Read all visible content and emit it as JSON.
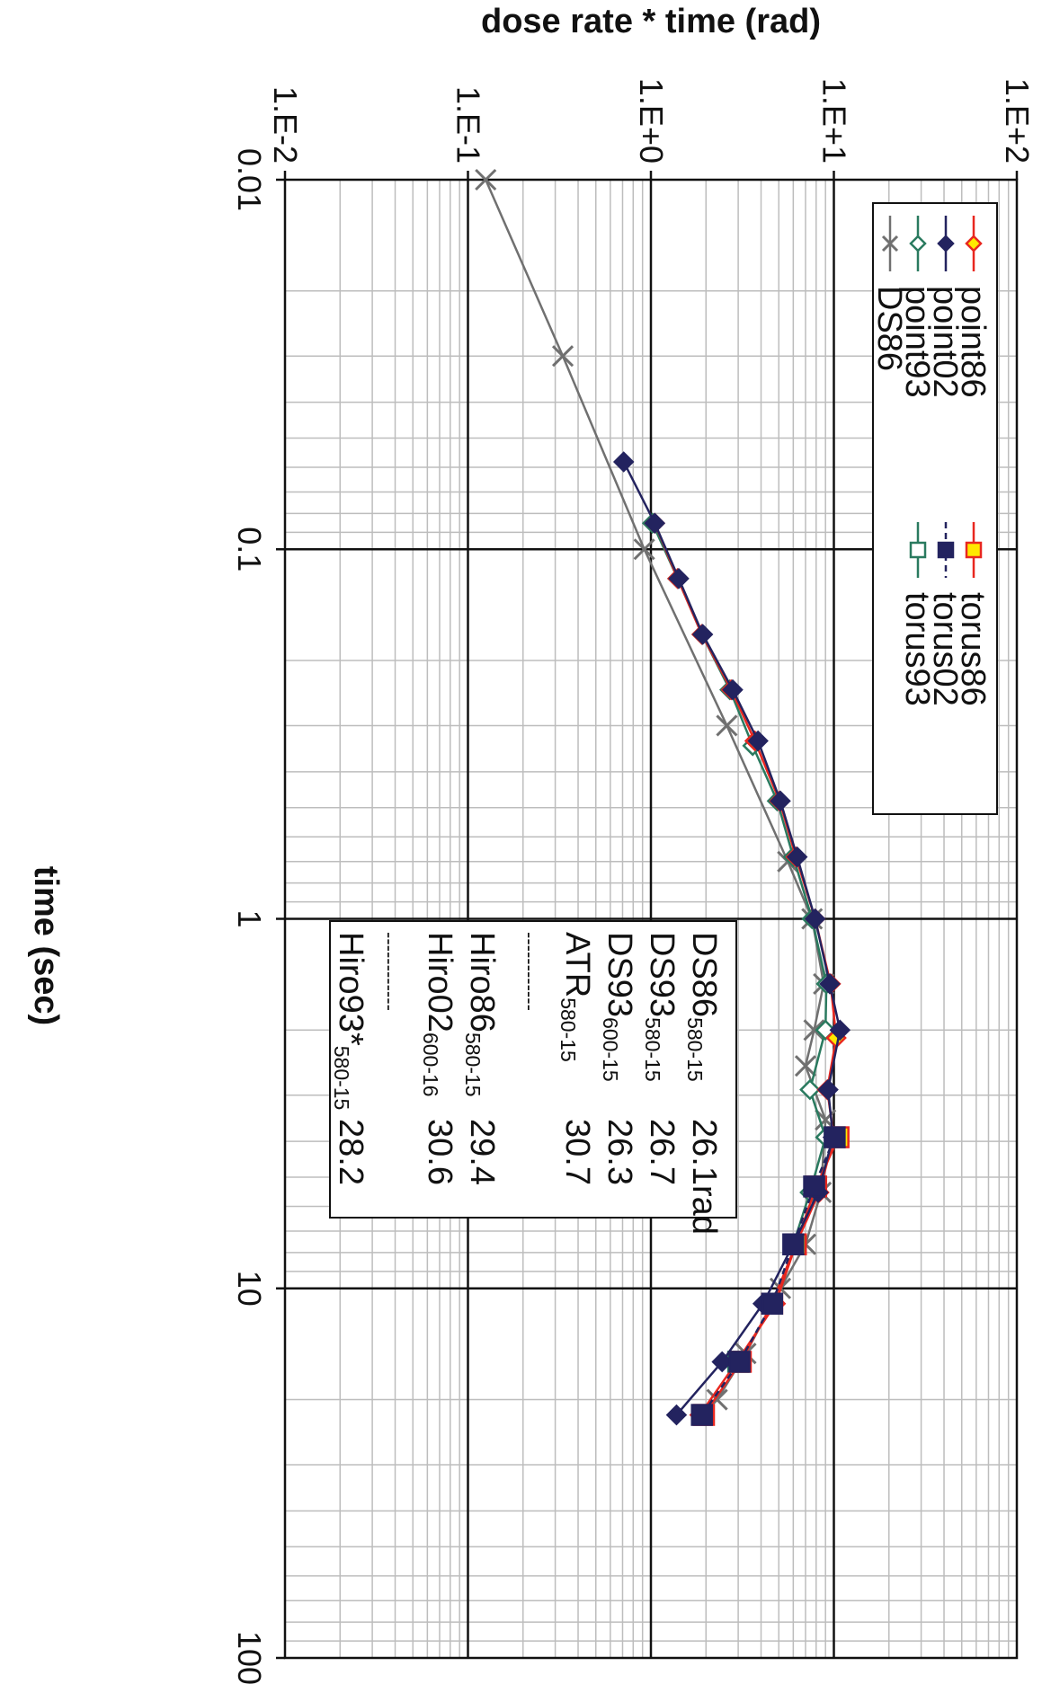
{
  "chart_data": {
    "type": "line",
    "x_scale": "log",
    "y_scale": "log",
    "xlabel": "time (sec)",
    "ylabel": "dose rate * time (rad)",
    "xlim": [
      0.01,
      100
    ],
    "ylim": [
      0.01,
      100
    ],
    "x_ticks": [
      "0.01",
      "0.1",
      "1",
      "10",
      "100"
    ],
    "y_ticks": [
      "1.E-2",
      "1.E-1",
      "1.E+0",
      "1.E+1",
      "1.E+2"
    ],
    "grid": true,
    "rotation": "rotated 90 degrees clockwise on page",
    "legend_placement": "top-left",
    "series": [
      {
        "name": "point86",
        "color": "#e8271f",
        "marker": "diamond-open",
        "marker_fill": "#ffe800",
        "line": "solid",
        "x": [
          0.085,
          0.12,
          0.17,
          0.24,
          0.33,
          0.48,
          0.68,
          1.0,
          1.5,
          2.1,
          2.9,
          3.9,
          5.5,
          7.6,
          11.0,
          15.8,
          22.0
        ],
        "y": [
          1.05,
          1.4,
          1.9,
          2.75,
          3.7,
          5.05,
          6.2,
          7.9,
          9.6,
          10.3,
          9.2,
          10.0,
          8.3,
          6.2,
          4.8,
          2.95,
          1.85
        ]
      },
      {
        "name": "point02",
        "color": "#23235f",
        "marker": "diamond-filled",
        "marker_fill": "#23235f",
        "line": "solid",
        "x": [
          0.058,
          0.085,
          0.12,
          0.17,
          0.24,
          0.33,
          0.48,
          0.68,
          1.0,
          1.5,
          2.0,
          2.9,
          3.9,
          5.5,
          7.6,
          11.0,
          15.8,
          22.0
        ],
        "y": [
          0.71,
          1.05,
          1.42,
          1.92,
          2.8,
          3.85,
          5.1,
          6.3,
          7.9,
          9.5,
          10.8,
          9.3,
          9.9,
          8.2,
          6.0,
          4.1,
          2.45,
          1.38
        ]
      },
      {
        "name": "point93",
        "color": "#2a7a5f",
        "marker": "diamond-open",
        "marker_fill": "#ffffff",
        "line": "solid",
        "x": [
          0.085,
          0.12,
          0.17,
          0.24,
          0.34,
          0.48,
          0.68,
          1.0,
          1.5,
          2.0,
          2.9,
          3.9,
          5.5,
          7.6
        ],
        "y": [
          1.02,
          1.4,
          1.9,
          2.7,
          3.6,
          4.9,
          6.0,
          7.6,
          9.1,
          9.0,
          7.4,
          9.0,
          7.4,
          6.0
        ]
      },
      {
        "name": "torus86",
        "color": "#e8271f",
        "marker": "square",
        "marker_fill": "#ffe800",
        "line": "solid",
        "x": [
          3.9,
          5.3,
          7.6,
          11.0,
          15.8,
          22.0
        ],
        "y": [
          10.6,
          8.0,
          6.2,
          4.6,
          3.1,
          1.95
        ]
      },
      {
        "name": "torus02",
        "color": "#23235f",
        "marker": "square",
        "marker_fill": "#23235f",
        "line": "dotted",
        "x": [
          3.9,
          5.3,
          7.6,
          11.0,
          15.8,
          22.0
        ],
        "y": [
          10.1,
          7.8,
          6.0,
          4.6,
          3.05,
          1.9
        ]
      },
      {
        "name": "torus93",
        "color": "#2a7a5f",
        "marker": "square-open",
        "marker_fill": "#ffffff",
        "line": "solid",
        "x": [
          15.8
        ],
        "y": [
          3.0
        ]
      },
      {
        "name": "DS86",
        "color": "#707070",
        "marker": "x",
        "marker_fill": "none",
        "line": "solid",
        "x": [
          0.01,
          0.03,
          0.1,
          0.3,
          0.7,
          1.0,
          1.5,
          2.0,
          2.5,
          3.5,
          5.5,
          7.6,
          10.0,
          15.0,
          20.0
        ],
        "y": [
          0.125,
          0.33,
          0.92,
          2.6,
          5.6,
          7.6,
          8.8,
          7.8,
          7.0,
          9.0,
          8.5,
          7.0,
          5.1,
          3.3,
          2.3
        ]
      }
    ],
    "legend": {
      "entries": [
        "point86",
        "point02",
        "point93",
        "DS86",
        "torus86",
        "torus02",
        "torus93"
      ]
    },
    "annotation": {
      "rows": [
        {
          "label": "DS86",
          "sub": "580-15",
          "value": "26.1rad"
        },
        {
          "label": "DS93",
          "sub": "580-15",
          "value": "26.7"
        },
        {
          "label": "DS93",
          "sub": "600-15",
          "value": "26.3"
        },
        {
          "label": "ATR",
          "sub": "580-15",
          "value": "30.7"
        },
        {
          "label": "------------",
          "sub": "",
          "value": ""
        },
        {
          "label": "Hiro86",
          "sub": "580-15",
          "value": "29.4"
        },
        {
          "label": "Hiro02",
          "sub": "600-16",
          "value": "30.6"
        },
        {
          "label": "------------",
          "sub": "",
          "value": ""
        },
        {
          "label": "Hiro93*",
          "sub": "580-15",
          "value": "28.2"
        }
      ]
    }
  }
}
